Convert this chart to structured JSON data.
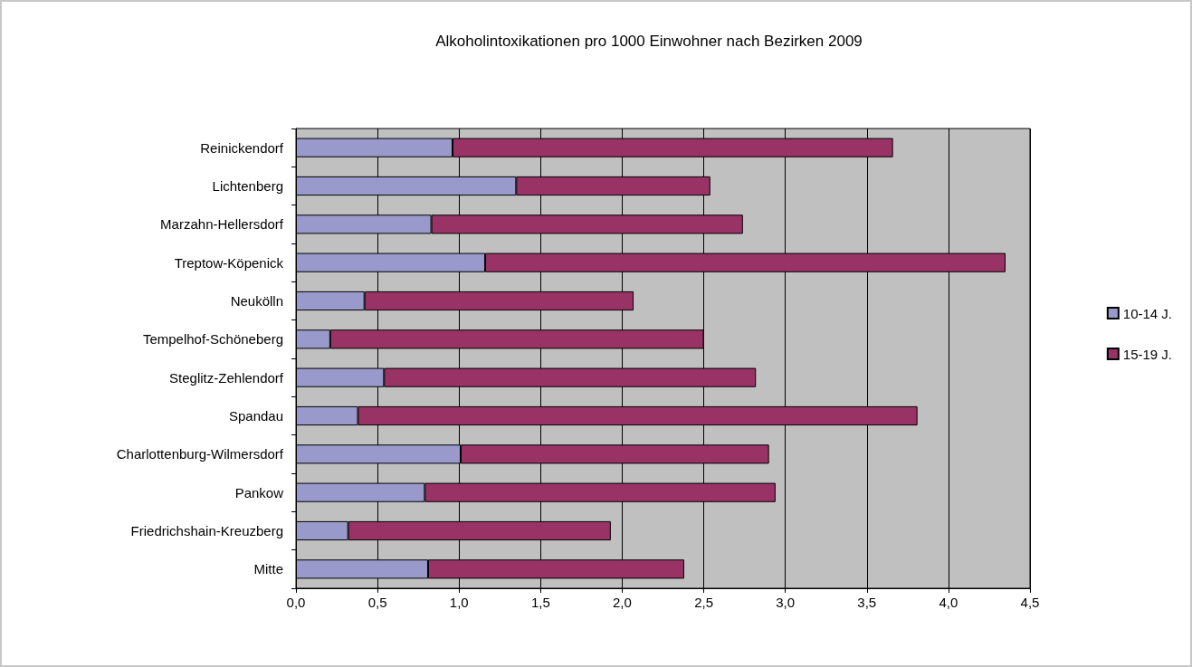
{
  "chart_data": {
    "type": "bar",
    "orientation": "horizontal",
    "stacked": true,
    "title": "Alkoholintoxikationen pro 1000 Einwohner nach Bezirken 2009",
    "categories": [
      "Reinickendorf",
      "Lichtenberg",
      "Marzahn-Hellersdorf",
      "Treptow-Köpenick",
      "Neukölln",
      "Tempelhof-Schöneberg",
      "Steglitz-Zehlendorf",
      "Spandau",
      "Charlottenburg-Wilmersdorf",
      "Pankow",
      "Friedrichshain-Kreuzberg",
      "Mitte"
    ],
    "series": [
      {
        "name": "10-14 J.",
        "color": "#9999cc",
        "values": [
          0.96,
          1.35,
          0.83,
          1.16,
          0.42,
          0.21,
          0.54,
          0.38,
          1.01,
          0.79,
          0.32,
          0.81
        ]
      },
      {
        "name": "15-19 J.",
        "color": "#993366",
        "values": [
          2.7,
          1.19,
          1.91,
          3.19,
          1.65,
          2.29,
          2.28,
          3.43,
          1.89,
          2.15,
          1.61,
          1.57
        ]
      }
    ],
    "xlim": [
      0,
      4.5
    ],
    "xticks": [
      {
        "value": 0,
        "label": "0,0"
      },
      {
        "value": 0.5,
        "label": "0,5"
      },
      {
        "value": 1,
        "label": "1,0"
      },
      {
        "value": 1.5,
        "label": "1,5"
      },
      {
        "value": 2,
        "label": "2,0"
      },
      {
        "value": 2.5,
        "label": "2,5"
      },
      {
        "value": 3,
        "label": "3,0"
      },
      {
        "value": 3.5,
        "label": "3,5"
      },
      {
        "value": 4,
        "label": "4,0"
      },
      {
        "value": 4.5,
        "label": "4,5"
      }
    ],
    "grid": "x",
    "legend": "right"
  }
}
